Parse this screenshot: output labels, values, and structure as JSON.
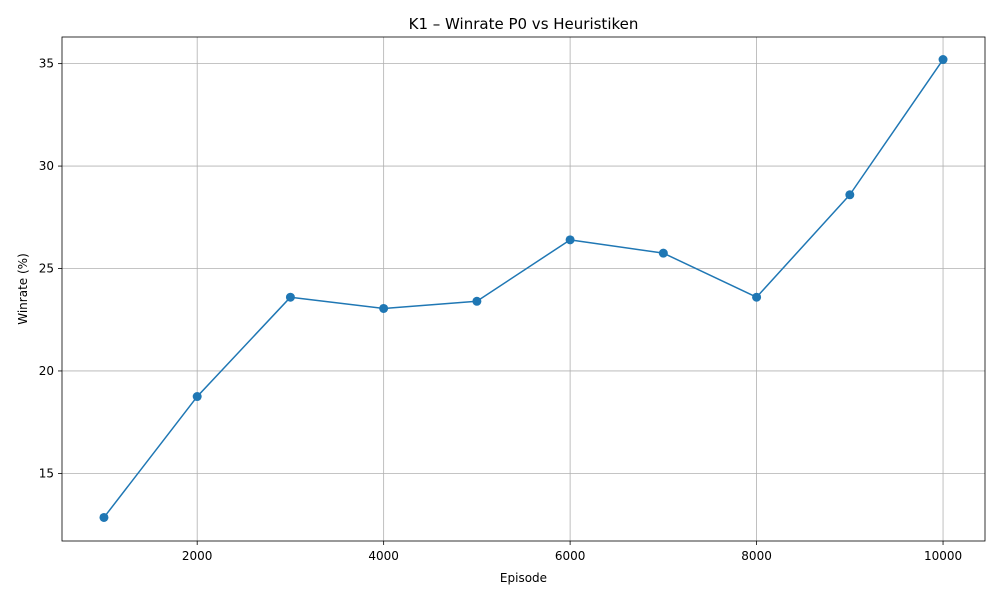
{
  "chart_data": {
    "type": "line",
    "title": "K1 – Winrate P0 vs Heuristiken",
    "xlabel": "Episode",
    "ylabel": "Winrate (%)",
    "x": [
      1000,
      2000,
      3000,
      4000,
      5000,
      6000,
      7000,
      8000,
      9000,
      10000
    ],
    "series": [
      {
        "values": [
          12.85,
          18.75,
          23.6,
          23.05,
          23.4,
          26.4,
          25.75,
          23.6,
          28.6,
          35.2
        ]
      }
    ],
    "xlim": [
      550,
      10450
    ],
    "ylim": [
      11.7,
      36.3
    ],
    "xticks": [
      2000,
      4000,
      6000,
      8000,
      10000
    ],
    "xtick_labels": [
      "2000",
      "4000",
      "6000",
      "8000",
      "10000"
    ],
    "yticks": [
      15,
      20,
      25,
      30,
      35
    ],
    "ytick_labels": [
      "15",
      "20",
      "25",
      "30",
      "35"
    ],
    "grid": true,
    "marker": "circle",
    "color": "#1f77b4"
  }
}
